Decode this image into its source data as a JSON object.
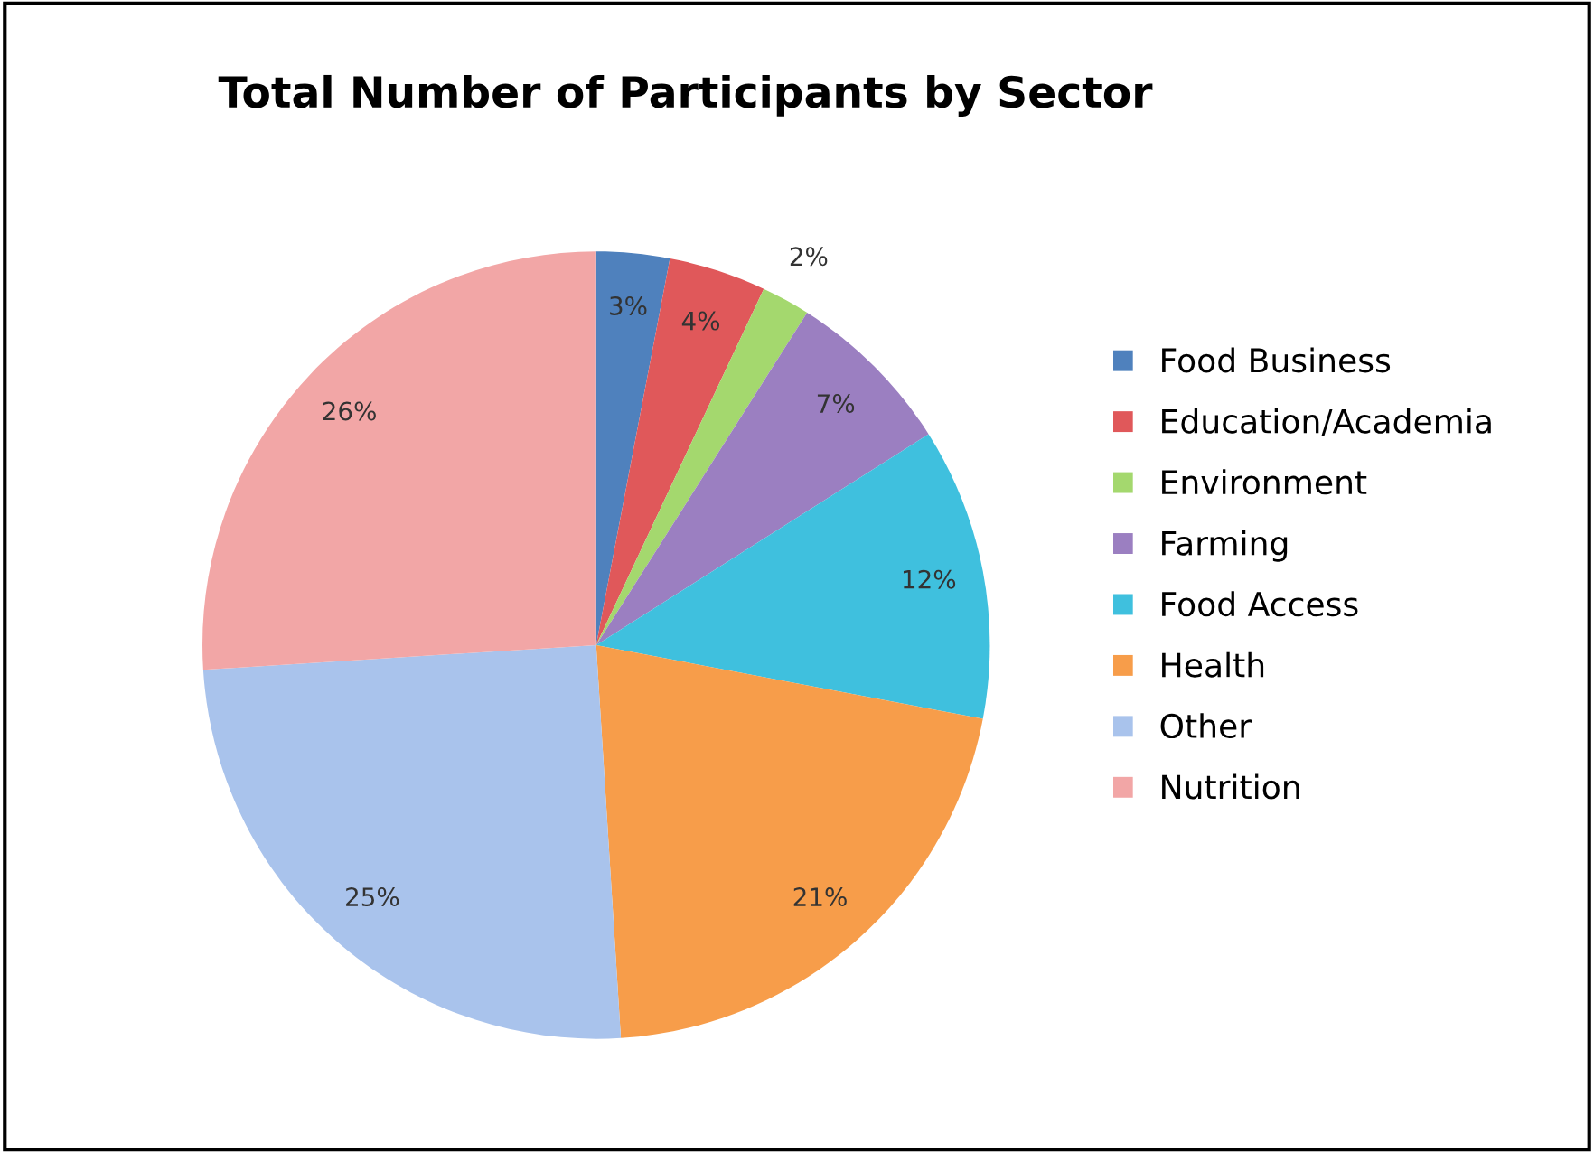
{
  "chart_data": {
    "type": "pie",
    "title": "Total Number of Participants by Sector",
    "categories": [
      "Food Business",
      "Education/Academia",
      "Environment",
      "Farming",
      "Food Access",
      "Health",
      "Other",
      "Nutrition"
    ],
    "values": [
      3,
      4,
      2,
      7,
      12,
      21,
      25,
      26
    ],
    "colors": [
      "#4f81bd",
      "#e0585a",
      "#a4d86e",
      "#9b7fc1",
      "#3fc0de",
      "#f79d4a",
      "#a9c3ec",
      "#f2a6a6"
    ],
    "value_labels": [
      "3%",
      "4%",
      "2%",
      "7%",
      "12%",
      "21%",
      "25%",
      "26%"
    ],
    "legend": "right"
  }
}
